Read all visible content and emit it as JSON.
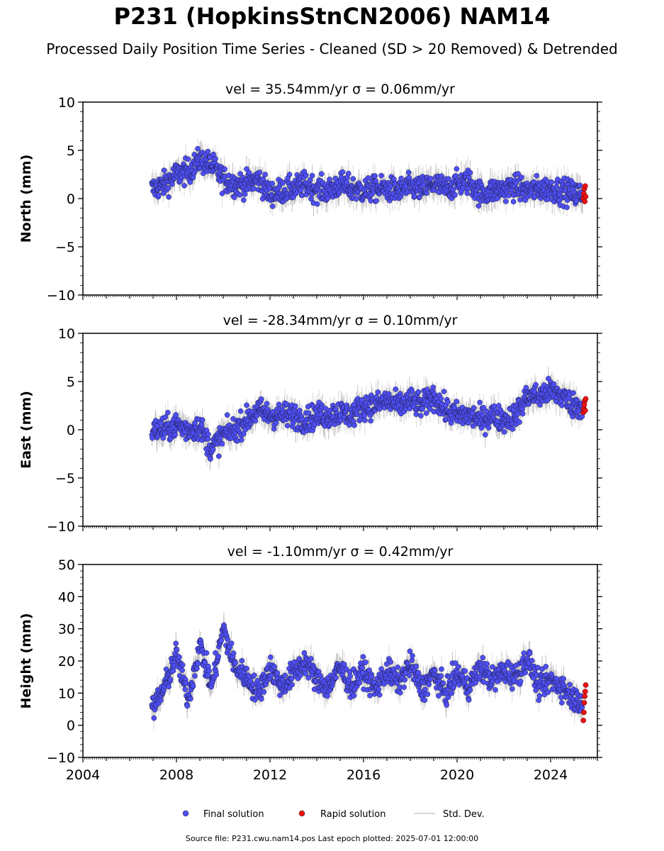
{
  "title": "P231 (HopkinsStnCN2006) NAM14",
  "subtitle": "Processed Daily Position Time Series - Cleaned (SD > 20 Removed) & Detrended",
  "footer": "Source file: P231.cwu.nam14.pos  Last epoch plotted: 2025-07-01 12:00:00",
  "colors": {
    "final": "#4f4ff5",
    "rapid": "#ee1111",
    "stddev": "#c0c0c0"
  },
  "chart_data": [
    {
      "type": "scatter",
      "panel_title": "vel = 35.54mm/yr   σ = 0.06mm/yr",
      "ylabel": "North (mm)",
      "xlim": [
        2004,
        2026
      ],
      "ylim": [
        -10,
        10
      ],
      "yticks": [
        "10",
        "5",
        "0",
        "−5",
        "−10"
      ],
      "series": [
        {
          "name": "Final solution",
          "x": [
            2007.0,
            2007.5,
            2008.0,
            2008.5,
            2009.0,
            2009.5,
            2010.0,
            2010.5,
            2011.0,
            2011.5,
            2012.0,
            2012.5,
            2013.0,
            2013.5,
            2014.0,
            2014.5,
            2015.0,
            2015.5,
            2016.0,
            2016.5,
            2017.0,
            2017.5,
            2018.0,
            2018.5,
            2019.0,
            2019.5,
            2020.0,
            2020.5,
            2021.0,
            2021.5,
            2022.0,
            2022.5,
            2023.0,
            2023.5,
            2024.0,
            2024.5,
            2025.0
          ],
          "y": [
            1.0,
            1.5,
            2.5,
            2.8,
            4.0,
            3.5,
            2.0,
            1.5,
            1.5,
            2.0,
            0.5,
            0.8,
            1.0,
            1.5,
            1.0,
            0.8,
            1.5,
            1.0,
            0.8,
            1.0,
            1.0,
            0.8,
            1.2,
            1.0,
            1.5,
            1.0,
            1.5,
            1.8,
            0.5,
            0.8,
            1.0,
            1.2,
            0.8,
            1.0,
            1.0,
            0.8,
            0.5
          ]
        },
        {
          "name": "Rapid solution",
          "x": [
            2025.4,
            2025.42,
            2025.44,
            2025.46,
            2025.48,
            2025.5
          ],
          "y": [
            0.0,
            0.5,
            1.0,
            -0.3,
            1.3,
            0.2
          ]
        }
      ]
    },
    {
      "type": "scatter",
      "panel_title": "vel = -28.34mm/yr   σ = 0.10mm/yr",
      "ylabel": "East (mm)",
      "xlim": [
        2004,
        2026
      ],
      "ylim": [
        -10,
        10
      ],
      "yticks": [
        "10",
        "5",
        "0",
        "−5",
        "−10"
      ],
      "series": [
        {
          "name": "Final solution",
          "x": [
            2007.0,
            2007.5,
            2008.0,
            2008.5,
            2009.0,
            2009.5,
            2010.0,
            2010.5,
            2011.0,
            2011.5,
            2012.0,
            2012.5,
            2013.0,
            2013.5,
            2014.0,
            2014.5,
            2015.0,
            2015.5,
            2016.0,
            2016.5,
            2017.0,
            2017.5,
            2018.0,
            2018.5,
            2019.0,
            2019.5,
            2020.0,
            2020.5,
            2021.0,
            2021.5,
            2022.0,
            2022.5,
            2023.0,
            2023.5,
            2024.0,
            2024.5,
            2025.0
          ],
          "y": [
            0.0,
            0.0,
            0.5,
            0.0,
            0.3,
            -2.0,
            -0.5,
            0.0,
            1.0,
            2.0,
            1.5,
            1.5,
            1.5,
            1.0,
            1.5,
            1.5,
            1.8,
            1.5,
            2.5,
            2.5,
            3.0,
            2.5,
            3.0,
            2.5,
            3.5,
            2.0,
            1.5,
            1.5,
            1.0,
            1.5,
            1.0,
            1.5,
            3.5,
            3.5,
            4.0,
            3.5,
            2.5
          ]
        },
        {
          "name": "Rapid solution",
          "x": [
            2025.4,
            2025.42,
            2025.44,
            2025.46,
            2025.48,
            2025.5
          ],
          "y": [
            1.8,
            2.2,
            2.6,
            3.0,
            2.0,
            3.2
          ]
        }
      ]
    },
    {
      "type": "scatter",
      "panel_title": "vel = -1.10mm/yr   σ = 0.42mm/yr",
      "ylabel": "Height (mm)",
      "xlim": [
        2004,
        2026
      ],
      "ylim": [
        -10,
        50
      ],
      "yticks": [
        "50",
        "40",
        "30",
        "20",
        "10",
        "0",
        "−10"
      ],
      "xticks": [
        "2004",
        "2008",
        "2012",
        "2016",
        "2020",
        "2024"
      ],
      "series": [
        {
          "name": "Final solution",
          "x": [
            2007.0,
            2007.5,
            2008.0,
            2008.5,
            2009.0,
            2009.5,
            2010.0,
            2010.5,
            2011.0,
            2011.5,
            2012.0,
            2012.5,
            2013.0,
            2013.5,
            2014.0,
            2014.5,
            2015.0,
            2015.5,
            2016.0,
            2016.5,
            2017.0,
            2017.5,
            2018.0,
            2018.5,
            2019.0,
            2019.5,
            2020.0,
            2020.5,
            2021.0,
            2021.5,
            2022.0,
            2022.5,
            2023.0,
            2023.5,
            2024.0,
            2024.5,
            2025.0
          ],
          "y": [
            5,
            12,
            22,
            8,
            25,
            12,
            30,
            18,
            15,
            10,
            18,
            12,
            16,
            20,
            14,
            12,
            18,
            12,
            17,
            11,
            17,
            13,
            19,
            11,
            16,
            10,
            16,
            12,
            18,
            14,
            17,
            15,
            21,
            12,
            14,
            12,
            8
          ]
        },
        {
          "name": "Rapid solution",
          "x": [
            2025.4,
            2025.42,
            2025.44,
            2025.46,
            2025.48,
            2025.5
          ],
          "y": [
            1.5,
            4.0,
            7.0,
            9.0,
            10.5,
            12.5
          ]
        }
      ]
    }
  ],
  "legend": {
    "final": "Final solution",
    "rapid": "Rapid solution",
    "stddev": "Std. Dev."
  }
}
